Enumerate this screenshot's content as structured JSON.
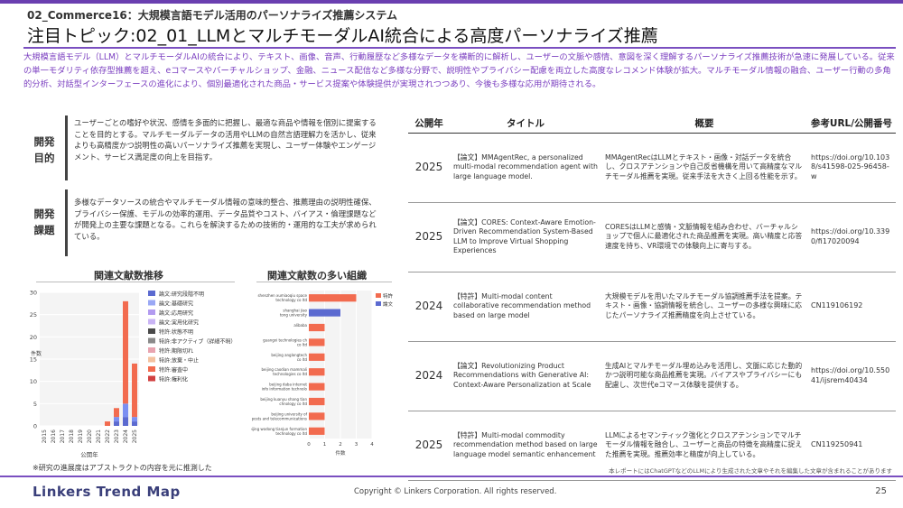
{
  "header": {
    "subtitle": "02_Commerce16：大規模言語モデル活用のパーソナライズ推薦システム",
    "title": "注目トピック:02_01_LLMとマルチモーダルAI統合による高度パーソナライズ推薦",
    "intro": "大規模言語モデル（LLM）とマルチモーダルAIの統合により、テキスト、画像、音声、行動履歴など多様なデータを横断的に解析し、ユーザーの文脈や感情、意図を深く理解するパーソナライズ推薦技術が急速に発展している。従来の単一モダリティ依存型推薦を超え、eコマースやバーチャルショップ、金融、ニュース配信など多様な分野で、説明性やプライバシー配慮を両立した高度なレコメンド体験が拡大。マルチモーダル情報の融合、ユーザー行動の多角的分析、対話型インターフェースの進化により、個別最適化された商品・サービス提案や体験提供が実現されつつあり、今後も多様な応用が期待される。"
  },
  "purpose": {
    "label": "開発目的",
    "text": "ユーザーごとの嗜好や状況、感情を多面的に把握し、最適な商品や情報を個別に提案することを目的とする。マルチモーダルデータの活用やLLMの自然言語理解力を活かし、従来よりも高精度かつ説明性の高いパーソナライズ推薦を実現し、ユーザー体験やエンゲージメント、サービス満足度の向上を目指す。"
  },
  "issues": {
    "label": "開発課題",
    "text": "多様なデータソースの統合やマルチモーダル情報の意味的整合、推薦理由の説明性確保、プライバシー保護、モデルの効率的運用、データ品質やコスト、バイアス・倫理課題などが開発上の主要な課題となる。これらを解決するための技術的・運用的な工夫が求められている。"
  },
  "trend_chart": {
    "title": "関連文献数推移",
    "xlabel": "公開年",
    "ylabel": "件数",
    "legend": [
      "論文:研究段階不明",
      "論文:基礎研究",
      "論文:応用研究",
      "論文:実用化研究",
      "特許:状態不明",
      "特許:非アクティブ（詳細不明）",
      "特許:期限切れ",
      "特許:放棄・中止",
      "特許:審査中",
      "特許:権利化"
    ]
  },
  "org_chart": {
    "title": "関連文献数の多い組織",
    "xlabel": "件数",
    "legend": [
      "特許",
      "論文"
    ],
    "orgs": [
      "shenzhen xumiaoqiu space technology co ltd",
      "shanghai jiao tong university",
      "alibaba",
      "guangxi technologies ch co ltd",
      "beijing anglongtech co ltd",
      "beijing caodian mammali technologies co ltd",
      "beijing daba internet info information technolo",
      "beijing kuanyu shang tian chnology co ltd",
      "beijing university of posts and telecommunications",
      "beijing wodong tianjun formation technology co ltd"
    ]
  },
  "chart_data": [
    {
      "type": "bar",
      "title": "関連文献数推移",
      "xlabel": "公開年",
      "ylabel": "件数",
      "ylim": [
        0,
        30
      ],
      "yticks": [
        0,
        5,
        10,
        15,
        20,
        25,
        30
      ],
      "categories": [
        "2015",
        "2016",
        "2017",
        "2018",
        "2019",
        "2020",
        "2021",
        "2022",
        "2023",
        "2024",
        "2025"
      ],
      "series": [
        {
          "name": "論文:研究段階不明",
          "values": [
            0,
            0,
            0,
            0,
            0,
            0,
            0,
            0,
            1,
            2,
            1
          ]
        },
        {
          "name": "論文:応用研究",
          "values": [
            0,
            0,
            0,
            0,
            0,
            0,
            0,
            0,
            1,
            3,
            1
          ]
        },
        {
          "name": "特許:審査中",
          "values": [
            0,
            0,
            0,
            0,
            0,
            0,
            0,
            1,
            2,
            23,
            12
          ]
        }
      ]
    },
    {
      "type": "bar",
      "orientation": "horizontal",
      "title": "関連文献数の多い組織",
      "xlabel": "件数",
      "xlim": [
        0,
        4
      ],
      "xticks": [
        0,
        1,
        2,
        3,
        4
      ],
      "categories": [
        "shenzhen xumiaoqiu space technology co ltd",
        "shanghai jiao tong university",
        "alibaba",
        "guangxi technologies ch co ltd",
        "beijing anglongtech co ltd",
        "beijing caodian mammali technologies co ltd",
        "beijing daba internet info information technolo",
        "beijing kuanyu shang tian chnology co ltd",
        "beijing university of posts and telecommunications",
        "beijing wodong tianjun formation technology co ltd"
      ],
      "series": [
        {
          "name": "特許",
          "values": [
            3,
            0,
            1,
            1,
            1,
            1,
            1,
            1,
            1,
            1
          ]
        },
        {
          "name": "論文",
          "values": [
            0,
            2,
            0,
            0,
            0,
            0,
            0,
            0,
            0,
            0
          ]
        }
      ]
    }
  ],
  "footnote": "※研究の進展度はアブストラクトの内容を元に推測した",
  "table": {
    "headers": [
      "公開年",
      "タイトル",
      "概要",
      "参考URL/公開番号"
    ],
    "rows": [
      {
        "year": "2025",
        "title": "【論文】MMAgentRec, a personalized multi-modal recommendation agent with large language model.",
        "summary": "MMAgentRecはLLMとテキスト・画像・対話データを統合し、クロスアテンションや自己反省機構を用いて高精度なマルチモーダル推薦を実現。従来手法を大きく上回る性能を示す。",
        "ref": "https://doi.org/10.1038/s41598-025-96458-w"
      },
      {
        "year": "2025",
        "title": "【論文】CORES: Context-Aware Emotion-Driven Recommendation System-Based LLM to Improve Virtual Shopping Experiences",
        "summary": "CORESはLLMと感情・文脈情報を組み合わせ、バーチャルショップで個人に最適化された商品推薦を実現。高い精度と応答速度を持ち、VR環境での体験向上に寄与する。",
        "ref": "https://doi.org/10.3390/fi17020094"
      },
      {
        "year": "2024",
        "title": "【特許】Multi-modal content collaborative recommendation method based on large model",
        "summary": "大規模モデルを用いたマルチモーダル協調推薦手法を提案。テキスト・画像・協調情報を統合し、ユーザーの多様な興味に応じたパーソナライズ推薦精度を向上させている。",
        "ref": "CN119106192"
      },
      {
        "year": "2024",
        "title": "【論文】Revolutionizing Product Recommendations with Generative AI: Context-Aware Personalization at Scale",
        "summary": "生成AIとマルチモーダル埋め込みを活用し、文脈に応じた動的かつ説明可能な商品推薦を実現。バイアスやプライバシーにも配慮し、次世代eコマース体験を提供する。",
        "ref": "https://doi.org/10.55041/ijsrem40434"
      },
      {
        "year": "2025",
        "title": "【特許】Multi-modal commodity recommendation method based on large language model semantic enhancement",
        "summary": "LLMによるセマンティック強化とクロスアテンションでマルチモーダル情報を融合し、ユーザーと商品の特徴を高精度に捉えた推薦を実現。推薦効率と精度が向上している。",
        "ref": "CN119250941"
      }
    ]
  },
  "footer": {
    "disclaimer": "本レポートにはChatGPTなどのLLMにより生成された文章やそれを編集した文章が含まれることがあります",
    "logo": "Linkers Trend Map",
    "copyright": "Copyright © Linkers Corporation. All rights reserved.",
    "page": "25"
  },
  "colors": {
    "accent": "#7a4fc0",
    "intro_text": "#7b3fc0",
    "bar_patent_pending": "#f26b4f",
    "bar_paper_applied": "#7b8ff2",
    "bar_paper_unknown": "#5b6ad0",
    "org_patent": "#f26b4f",
    "org_paper": "#5b6ad0"
  }
}
